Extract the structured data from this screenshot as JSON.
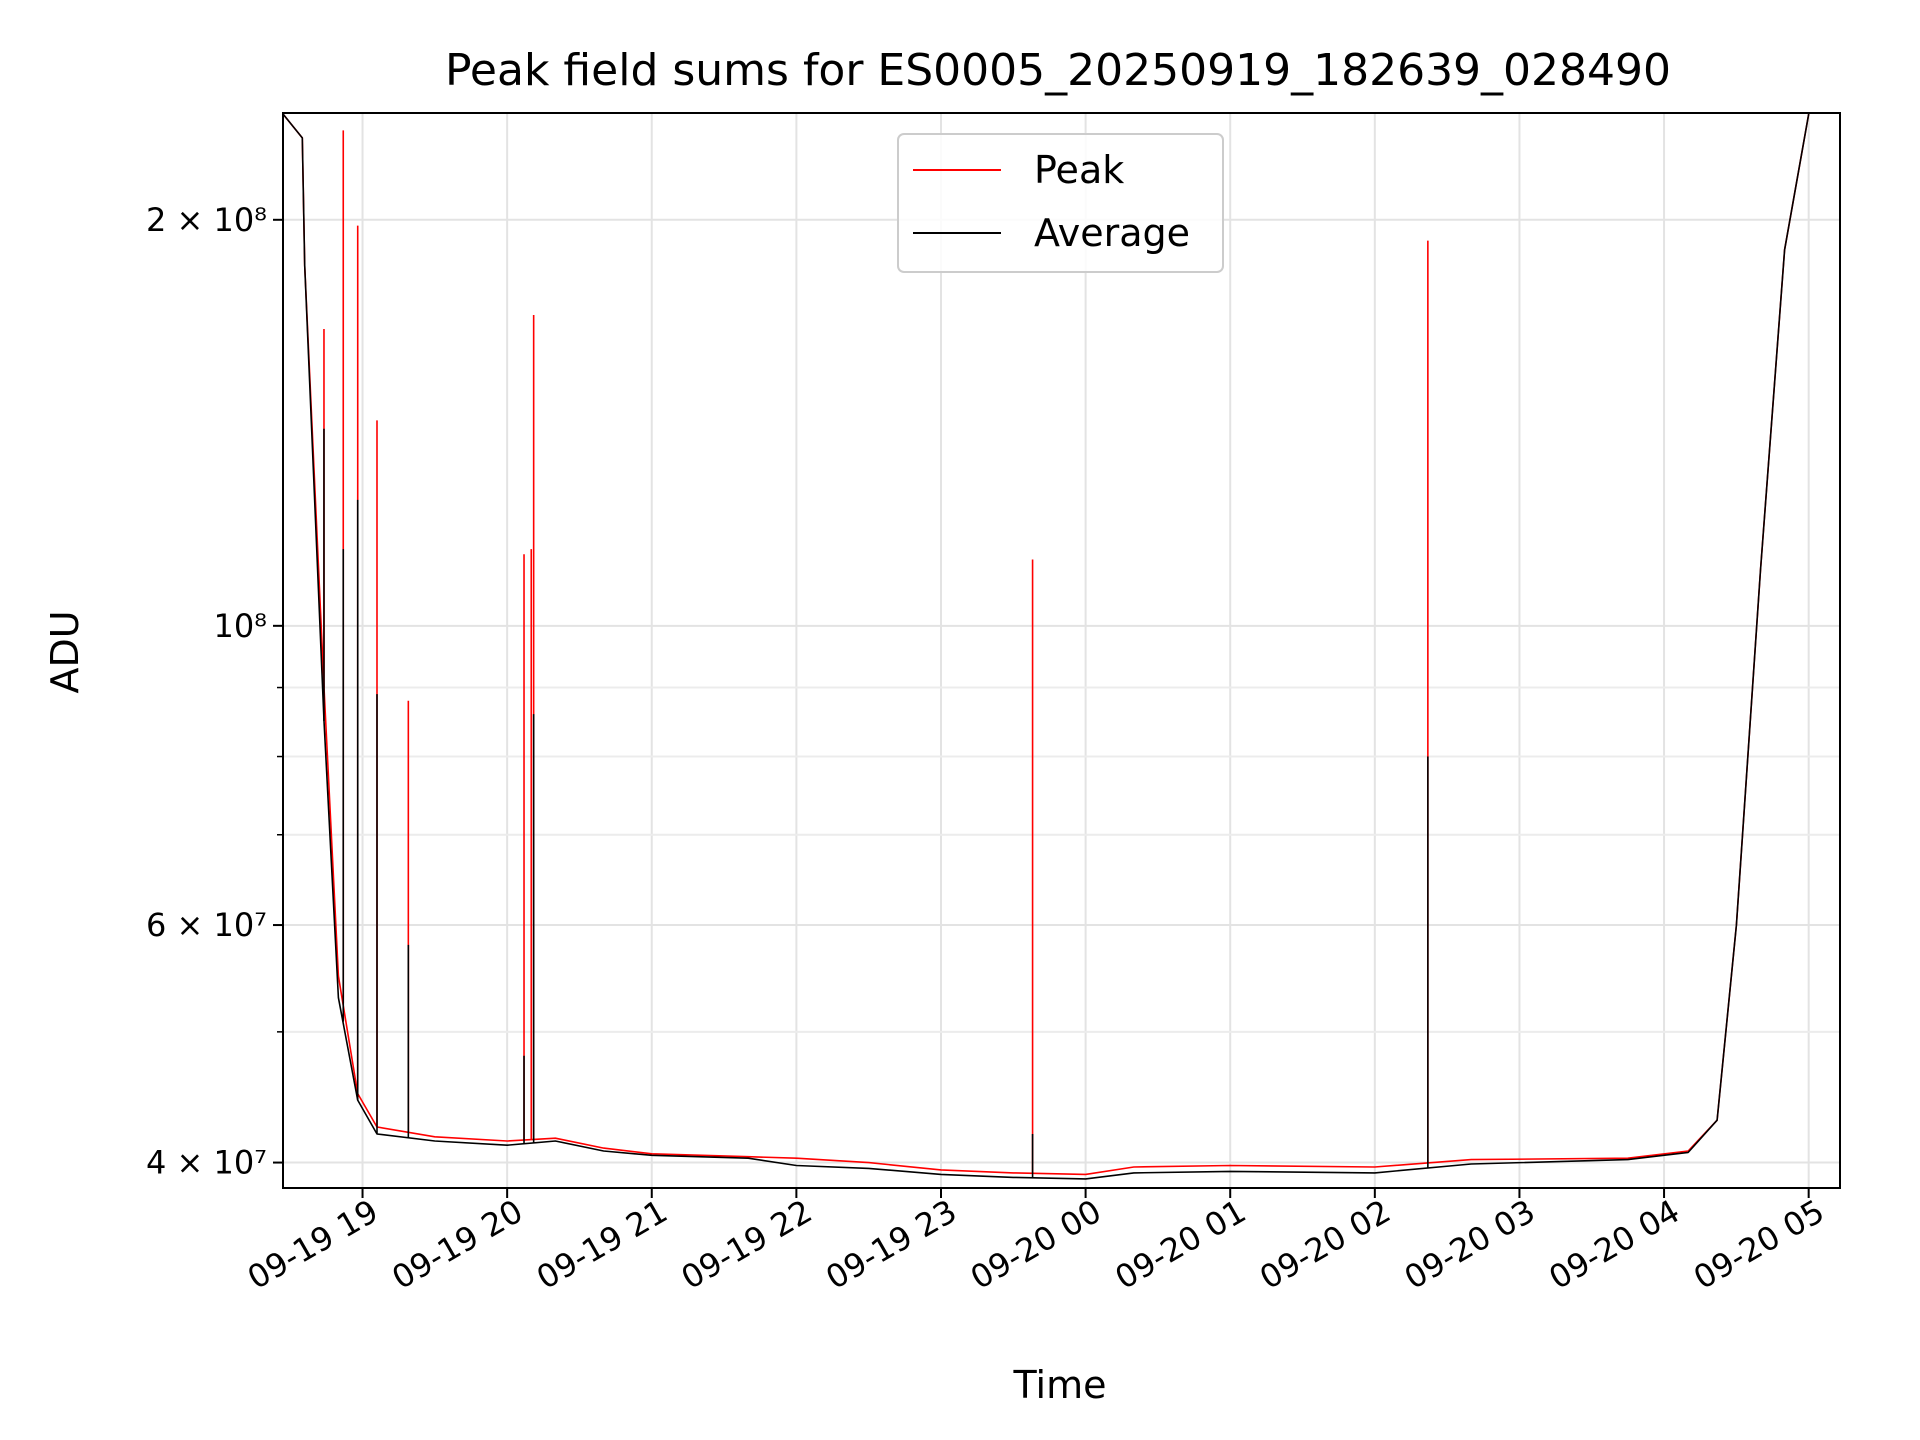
{
  "chart_data": {
    "type": "line",
    "title": "Peak field sums for ES0005_20250919_182639_028490",
    "xlabel": "Time",
    "ylabel": "ADU",
    "yscale": "log",
    "ylim": [
      38300000,
      240000000
    ],
    "xlim": [
      "2025-09-19 18:27",
      "2025-09-20 05:13"
    ],
    "grid": true,
    "legend_position": "top-center",
    "x_ticks": [
      {
        "t": "2025-09-19 19:00",
        "label": "09-19 19"
      },
      {
        "t": "2025-09-19 20:00",
        "label": "09-19 20"
      },
      {
        "t": "2025-09-19 21:00",
        "label": "09-19 21"
      },
      {
        "t": "2025-09-19 22:00",
        "label": "09-19 22"
      },
      {
        "t": "2025-09-19 23:00",
        "label": "09-19 23"
      },
      {
        "t": "2025-09-20 00:00",
        "label": "09-20 00"
      },
      {
        "t": "2025-09-20 01:00",
        "label": "09-20 01"
      },
      {
        "t": "2025-09-20 02:00",
        "label": "09-20 02"
      },
      {
        "t": "2025-09-20 03:00",
        "label": "09-20 03"
      },
      {
        "t": "2025-09-20 04:00",
        "label": "09-20 04"
      },
      {
        "t": "2025-09-20 05:00",
        "label": "09-20 05"
      }
    ],
    "y_ticks": [
      {
        "value": 200000000,
        "label": "2 × 10⁸"
      },
      {
        "value": 100000000,
        "label": "10⁸"
      },
      {
        "value": 60000000,
        "label": "6 × 10⁷"
      },
      {
        "value": 40000000,
        "label": "4 × 10⁷"
      }
    ],
    "y_minor_ticks": [
      50000000,
      70000000,
      80000000,
      90000000
    ],
    "series": [
      {
        "name": "Peak",
        "color": "#ff0000",
        "baseline": [
          {
            "t": "2025-09-19 18:27",
            "v": 240000000
          },
          {
            "t": "2025-09-19 18:35",
            "v": 230000000
          },
          {
            "t": "2025-09-19 18:36",
            "v": 185000000
          },
          {
            "t": "2025-09-19 18:44",
            "v": 90000000
          },
          {
            "t": "2025-09-19 18:50",
            "v": 55000000
          },
          {
            "t": "2025-09-19 18:58",
            "v": 45000000
          },
          {
            "t": "2025-09-19 19:06",
            "v": 42500000
          },
          {
            "t": "2025-09-19 19:30",
            "v": 41800000
          },
          {
            "t": "2025-09-19 20:00",
            "v": 41500000
          },
          {
            "t": "2025-09-19 20:20",
            "v": 41700000
          },
          {
            "t": "2025-09-19 20:40",
            "v": 41000000
          },
          {
            "t": "2025-09-19 21:00",
            "v": 40600000
          },
          {
            "t": "2025-09-19 21:40",
            "v": 40400000
          },
          {
            "t": "2025-09-19 22:00",
            "v": 40300000
          },
          {
            "t": "2025-09-19 22:30",
            "v": 40000000
          },
          {
            "t": "2025-09-19 23:00",
            "v": 39500000
          },
          {
            "t": "2025-09-19 23:30",
            "v": 39300000
          },
          {
            "t": "2025-09-20 00:00",
            "v": 39200000
          },
          {
            "t": "2025-09-20 00:20",
            "v": 39700000
          },
          {
            "t": "2025-09-20 01:00",
            "v": 39800000
          },
          {
            "t": "2025-09-20 02:00",
            "v": 39700000
          },
          {
            "t": "2025-09-20 02:40",
            "v": 40200000
          },
          {
            "t": "2025-09-20 03:45",
            "v": 40300000
          },
          {
            "t": "2025-09-20 04:10",
            "v": 40800000
          },
          {
            "t": "2025-09-20 04:22",
            "v": 43000000
          },
          {
            "t": "2025-09-20 04:30",
            "v": 60000000
          },
          {
            "t": "2025-09-20 04:40",
            "v": 110000000
          },
          {
            "t": "2025-09-20 04:50",
            "v": 190000000
          },
          {
            "t": "2025-09-20 05:00",
            "v": 240000000
          }
        ],
        "spikes": [
          {
            "t": "2025-09-19 18:44",
            "v": 166000000
          },
          {
            "t": "2025-09-19 18:52",
            "v": 233000000
          },
          {
            "t": "2025-09-19 18:58",
            "v": 198000000
          },
          {
            "t": "2025-09-19 19:06",
            "v": 142000000
          },
          {
            "t": "2025-09-19 19:19",
            "v": 88000000
          },
          {
            "t": "2025-09-19 20:07",
            "v": 113000000
          },
          {
            "t": "2025-09-19 20:10",
            "v": 114000000
          },
          {
            "t": "2025-09-19 20:11",
            "v": 170000000
          },
          {
            "t": "2025-09-19 23:38",
            "v": 112000000
          },
          {
            "t": "2025-09-20 02:22",
            "v": 193000000
          }
        ]
      },
      {
        "name": "Average",
        "color": "#000000",
        "baseline": [
          {
            "t": "2025-09-19 18:27",
            "v": 240000000
          },
          {
            "t": "2025-09-19 18:35",
            "v": 230000000
          },
          {
            "t": "2025-09-19 18:36",
            "v": 185000000
          },
          {
            "t": "2025-09-19 18:44",
            "v": 85000000
          },
          {
            "t": "2025-09-19 18:50",
            "v": 53000000
          },
          {
            "t": "2025-09-19 18:58",
            "v": 44500000
          },
          {
            "t": "2025-09-19 19:06",
            "v": 42000000
          },
          {
            "t": "2025-09-19 19:30",
            "v": 41500000
          },
          {
            "t": "2025-09-19 20:00",
            "v": 41200000
          },
          {
            "t": "2025-09-19 20:20",
            "v": 41500000
          },
          {
            "t": "2025-09-19 20:40",
            "v": 40800000
          },
          {
            "t": "2025-09-19 21:00",
            "v": 40500000
          },
          {
            "t": "2025-09-19 21:40",
            "v": 40300000
          },
          {
            "t": "2025-09-19 22:00",
            "v": 39800000
          },
          {
            "t": "2025-09-19 22:30",
            "v": 39600000
          },
          {
            "t": "2025-09-19 23:00",
            "v": 39200000
          },
          {
            "t": "2025-09-19 23:30",
            "v": 39000000
          },
          {
            "t": "2025-09-20 00:00",
            "v": 38900000
          },
          {
            "t": "2025-09-20 00:20",
            "v": 39300000
          },
          {
            "t": "2025-09-20 01:00",
            "v": 39400000
          },
          {
            "t": "2025-09-20 02:00",
            "v": 39300000
          },
          {
            "t": "2025-09-20 02:40",
            "v": 39900000
          },
          {
            "t": "2025-09-20 03:45",
            "v": 40200000
          },
          {
            "t": "2025-09-20 04:10",
            "v": 40700000
          },
          {
            "t": "2025-09-20 04:22",
            "v": 43000000
          },
          {
            "t": "2025-09-20 04:30",
            "v": 60000000
          },
          {
            "t": "2025-09-20 04:40",
            "v": 110000000
          },
          {
            "t": "2025-09-20 04:50",
            "v": 190000000
          },
          {
            "t": "2025-09-20 05:00",
            "v": 240000000
          }
        ],
        "spikes": [
          {
            "t": "2025-09-19 18:44",
            "v": 140000000
          },
          {
            "t": "2025-09-19 18:52",
            "v": 114000000
          },
          {
            "t": "2025-09-19 18:58",
            "v": 124000000
          },
          {
            "t": "2025-09-19 19:06",
            "v": 89000000
          },
          {
            "t": "2025-09-19 19:19",
            "v": 58000000
          },
          {
            "t": "2025-09-19 20:07",
            "v": 48000000
          },
          {
            "t": "2025-09-19 20:11",
            "v": 86000000
          },
          {
            "t": "2025-09-19 23:38",
            "v": 42000000
          },
          {
            "t": "2025-09-20 02:22",
            "v": 80000000
          }
        ]
      }
    ]
  }
}
